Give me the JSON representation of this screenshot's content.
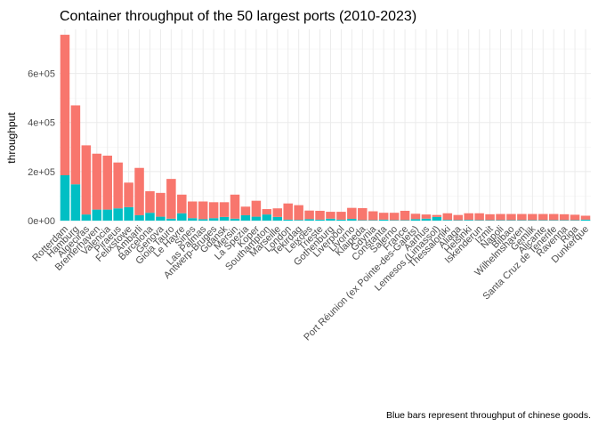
{
  "chart_data": {
    "type": "bar",
    "stacked": true,
    "title": "Container throughput of the 50 largest ports (2010-2023)",
    "xlabel": "",
    "ylabel": "throughput",
    "caption": "Blue bars represent throughput of chinese goods.",
    "ylim": [
      0,
      780000
    ],
    "yticks": [
      0,
      200000,
      400000,
      600000
    ],
    "yticklabels": [
      "0e+00",
      "2e+05",
      "4e+05",
      "6e+05"
    ],
    "grid": true,
    "legend": "none",
    "categories": [
      "Rotterdam",
      "Hamburg",
      "Algeciras",
      "Bremerhaven",
      "Valencia",
      "Piraeus",
      "Felixstowe",
      "Ambarli",
      "Barcelona",
      "Genova",
      "Gioia Tauro",
      "Le Havre",
      "Sines",
      "Las Palmas",
      "Antwerp-Bruges",
      "Gdansk",
      "Mersin",
      "La Spezia",
      "Koper",
      "Southampton",
      "Marseille",
      "London",
      "Tekirdag",
      "Leixoes",
      "Trieste",
      "Gothenburg",
      "Liverpool",
      "Livorno",
      "Klaipeda",
      "Gdynia",
      "Constanta",
      "Salerno",
      "France",
      "Port Réunion (ex Pointe-des-Galets)",
      "Aarhus",
      "Lemesos (Limassol)",
      "Thessaloniki",
      "Aliaga",
      "Helsinki",
      "Iskenderun",
      "Izmit",
      "Napoli",
      "Bilbao",
      "Wilhelmshaven",
      "Gemlik",
      "Alicante",
      "Santa Cruz de Tenerife",
      "Ravenna",
      "Riga",
      "Dunkerque"
    ],
    "series": [
      {
        "name": "",
        "color": "#00BFC4",
        "values": [
          185000,
          148000,
          25000,
          45000,
          45000,
          50000,
          55000,
          22000,
          32000,
          16000,
          8000,
          30000,
          10000,
          6000,
          10000,
          15000,
          8000,
          22000,
          16000,
          25000,
          15000,
          4000,
          3000,
          6000,
          4000,
          8000,
          4000,
          7000,
          2000,
          2000,
          4000,
          2000,
          2000,
          6000,
          8000,
          15000,
          3000,
          2000,
          3000,
          2000,
          2000,
          2000,
          2000,
          2000,
          2000,
          2000,
          2000,
          2000,
          2000,
          4000
        ]
      },
      {
        "name": "",
        "color": "#F8766D",
        "values": [
          573000,
          322000,
          282000,
          228000,
          220000,
          187000,
          100000,
          193000,
          88000,
          97000,
          162000,
          76000,
          68000,
          72000,
          65000,
          60000,
          98000,
          35000,
          65000,
          22000,
          35000,
          66000,
          60000,
          35000,
          36000,
          28000,
          32000,
          45000,
          49000,
          36000,
          28000,
          30000,
          38000,
          22000,
          17000,
          8000,
          27000,
          21000,
          27000,
          28000,
          24000,
          25000,
          25000,
          25000,
          25000,
          25000,
          25000,
          24000,
          22000,
          16000
        ]
      }
    ]
  }
}
